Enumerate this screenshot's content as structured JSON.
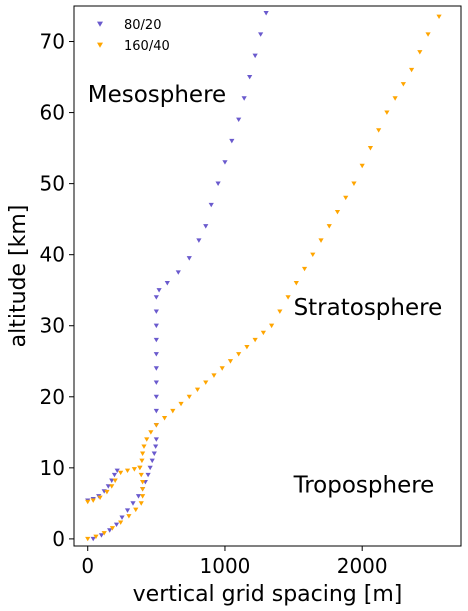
{
  "chart_data": {
    "type": "scatter",
    "xlabel": "vertical grid spacing [m]",
    "ylabel": "altitude [km]",
    "xlim": [
      -100,
      2720
    ],
    "ylim": [
      -1,
      75
    ],
    "xticks": [
      0,
      1000,
      2000
    ],
    "yticks": [
      0,
      10,
      20,
      30,
      40,
      50,
      60,
      70
    ],
    "grid": false,
    "legend_position": "top-left",
    "annotations": [
      {
        "text": "Mesosphere",
        "x": 0,
        "y": 61.5
      },
      {
        "text": "Stratosphere",
        "x": 1500,
        "y": 31.5
      },
      {
        "text": "Troposphere",
        "x": 1500,
        "y": 6.5
      }
    ],
    "series": [
      {
        "name": "80/20",
        "color": "#6a5acd",
        "marker": "triangle-down",
        "points": [
          [
            0,
            5.4
          ],
          [
            40,
            5.6
          ],
          [
            80,
            6.0
          ],
          [
            120,
            6.7
          ],
          [
            150,
            7.4
          ],
          [
            175,
            8.2
          ],
          [
            195,
            9.0
          ],
          [
            215,
            9.6
          ],
          [
            40,
            0
          ],
          [
            100,
            0.5
          ],
          [
            160,
            1.2
          ],
          [
            210,
            2.0
          ],
          [
            250,
            3.0
          ],
          [
            290,
            4.0
          ],
          [
            330,
            5.0
          ],
          [
            370,
            6.0
          ],
          [
            400,
            7.0
          ],
          [
            420,
            8.0
          ],
          [
            440,
            9.0
          ],
          [
            455,
            10.0
          ],
          [
            470,
            11.0
          ],
          [
            485,
            12.0
          ],
          [
            495,
            13.0
          ],
          [
            500,
            14.0
          ],
          [
            500,
            16.0
          ],
          [
            500,
            18.0
          ],
          [
            500,
            20.0
          ],
          [
            500,
            22.0
          ],
          [
            500,
            24.0
          ],
          [
            500,
            26.0
          ],
          [
            500,
            28.0
          ],
          [
            500,
            30.0
          ],
          [
            500,
            32.0
          ],
          [
            500,
            34.0
          ],
          [
            520,
            35.0
          ],
          [
            580,
            36.0
          ],
          [
            660,
            37.5
          ],
          [
            740,
            39.5
          ],
          [
            810,
            42.0
          ],
          [
            860,
            44.0
          ],
          [
            900,
            47.0
          ],
          [
            950,
            50.0
          ],
          [
            1000,
            53.0
          ],
          [
            1050,
            56.0
          ],
          [
            1100,
            59.0
          ],
          [
            1140,
            62.0
          ],
          [
            1180,
            65.0
          ],
          [
            1220,
            68.0
          ],
          [
            1260,
            71.0
          ],
          [
            1300,
            74.0
          ]
        ]
      },
      {
        "name": "160/40",
        "color": "#ffa500",
        "marker": "triangle-down",
        "points": [
          [
            0,
            5.2
          ],
          [
            40,
            5.4
          ],
          [
            90,
            5.8
          ],
          [
            140,
            6.6
          ],
          [
            175,
            7.4
          ],
          [
            200,
            8.2
          ],
          [
            240,
            9.3
          ],
          [
            290,
            9.6
          ],
          [
            340,
            9.8
          ],
          [
            380,
            10.0
          ],
          [
            395,
            11.0
          ],
          [
            400,
            12.0
          ],
          [
            410,
            13.0
          ],
          [
            430,
            14.0
          ],
          [
            460,
            15.0
          ],
          [
            500,
            16.0
          ],
          [
            560,
            17.0
          ],
          [
            620,
            18.0
          ],
          [
            680,
            19.0
          ],
          [
            740,
            20.0
          ],
          [
            800,
            21.0
          ],
          [
            860,
            22.0
          ],
          [
            920,
            23.0
          ],
          [
            980,
            24.0
          ],
          [
            1040,
            25.0
          ],
          [
            1100,
            26.0
          ],
          [
            1160,
            27.0
          ],
          [
            1220,
            28.0
          ],
          [
            1280,
            29.0
          ],
          [
            1340,
            30.0
          ],
          [
            1400,
            32.0
          ],
          [
            1460,
            34.0
          ],
          [
            1520,
            36.0
          ],
          [
            1580,
            38.0
          ],
          [
            1640,
            40.0
          ],
          [
            1700,
            42.0
          ],
          [
            1760,
            44.0
          ],
          [
            1820,
            46.0
          ],
          [
            1880,
            48.0
          ],
          [
            1940,
            50.0
          ],
          [
            2000,
            52.5
          ],
          [
            2060,
            55.0
          ],
          [
            2120,
            57.5
          ],
          [
            2180,
            60.0
          ],
          [
            2240,
            62.0
          ],
          [
            2300,
            64.0
          ],
          [
            2360,
            66.0
          ],
          [
            2420,
            68.5
          ],
          [
            2480,
            71.0
          ],
          [
            2560,
            73.5
          ],
          [
            0,
            0
          ],
          [
            60,
            0.3
          ],
          [
            120,
            0.8
          ],
          [
            180,
            1.5
          ],
          [
            240,
            2.3
          ],
          [
            300,
            3.2
          ],
          [
            350,
            4.1
          ],
          [
            390,
            5.0
          ],
          [
            400,
            6.0
          ],
          [
            400,
            7.0
          ],
          [
            400,
            8.0
          ],
          [
            390,
            9.0
          ],
          [
            380,
            10.0
          ]
        ]
      }
    ]
  }
}
